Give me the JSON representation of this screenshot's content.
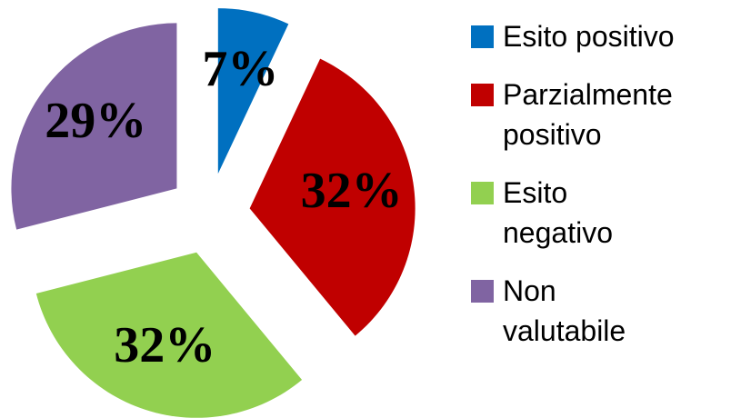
{
  "chart_data": {
    "type": "pie",
    "categories": [
      "Esito positivo",
      "Parzialmente positivo",
      "Esito negativo",
      "Non valutabile"
    ],
    "values": [
      7,
      32,
      32,
      29
    ],
    "value_labels": [
      "7%",
      "32%",
      "32%",
      "29%"
    ],
    "colors": [
      "#0070c0",
      "#c00000",
      "#92d050",
      "#8064a2"
    ],
    "legend": "right"
  }
}
